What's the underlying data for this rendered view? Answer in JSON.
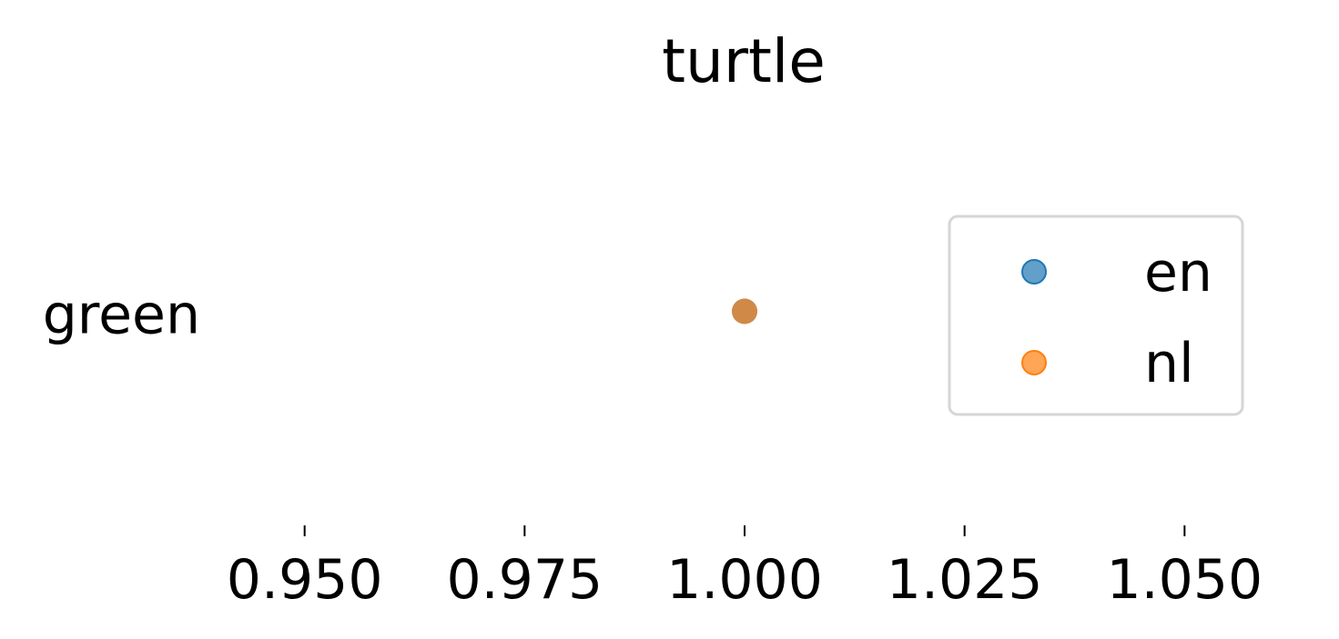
{
  "chart_data": {
    "type": "scatter",
    "title": "turtle",
    "xlabel": "",
    "ylabel": "",
    "xlim": [
      0.94,
      1.06
    ],
    "x_ticks": [
      0.95,
      0.975,
      1.0,
      1.025,
      1.05
    ],
    "x_tick_labels": [
      "0.950",
      "0.975",
      "1.000",
      "1.025",
      "1.050"
    ],
    "categories": [
      "green"
    ],
    "series": [
      {
        "name": "en",
        "color": "#1f77b4",
        "opacity": 0.7,
        "points": [
          {
            "category": "green",
            "x": 1.0
          }
        ]
      },
      {
        "name": "nl",
        "color": "#ff7f0e",
        "opacity": 0.7,
        "points": [
          {
            "category": "green",
            "x": 1.0
          }
        ]
      }
    ],
    "legend": {
      "position": "right",
      "frame": true
    },
    "grid": false,
    "spines": false
  }
}
